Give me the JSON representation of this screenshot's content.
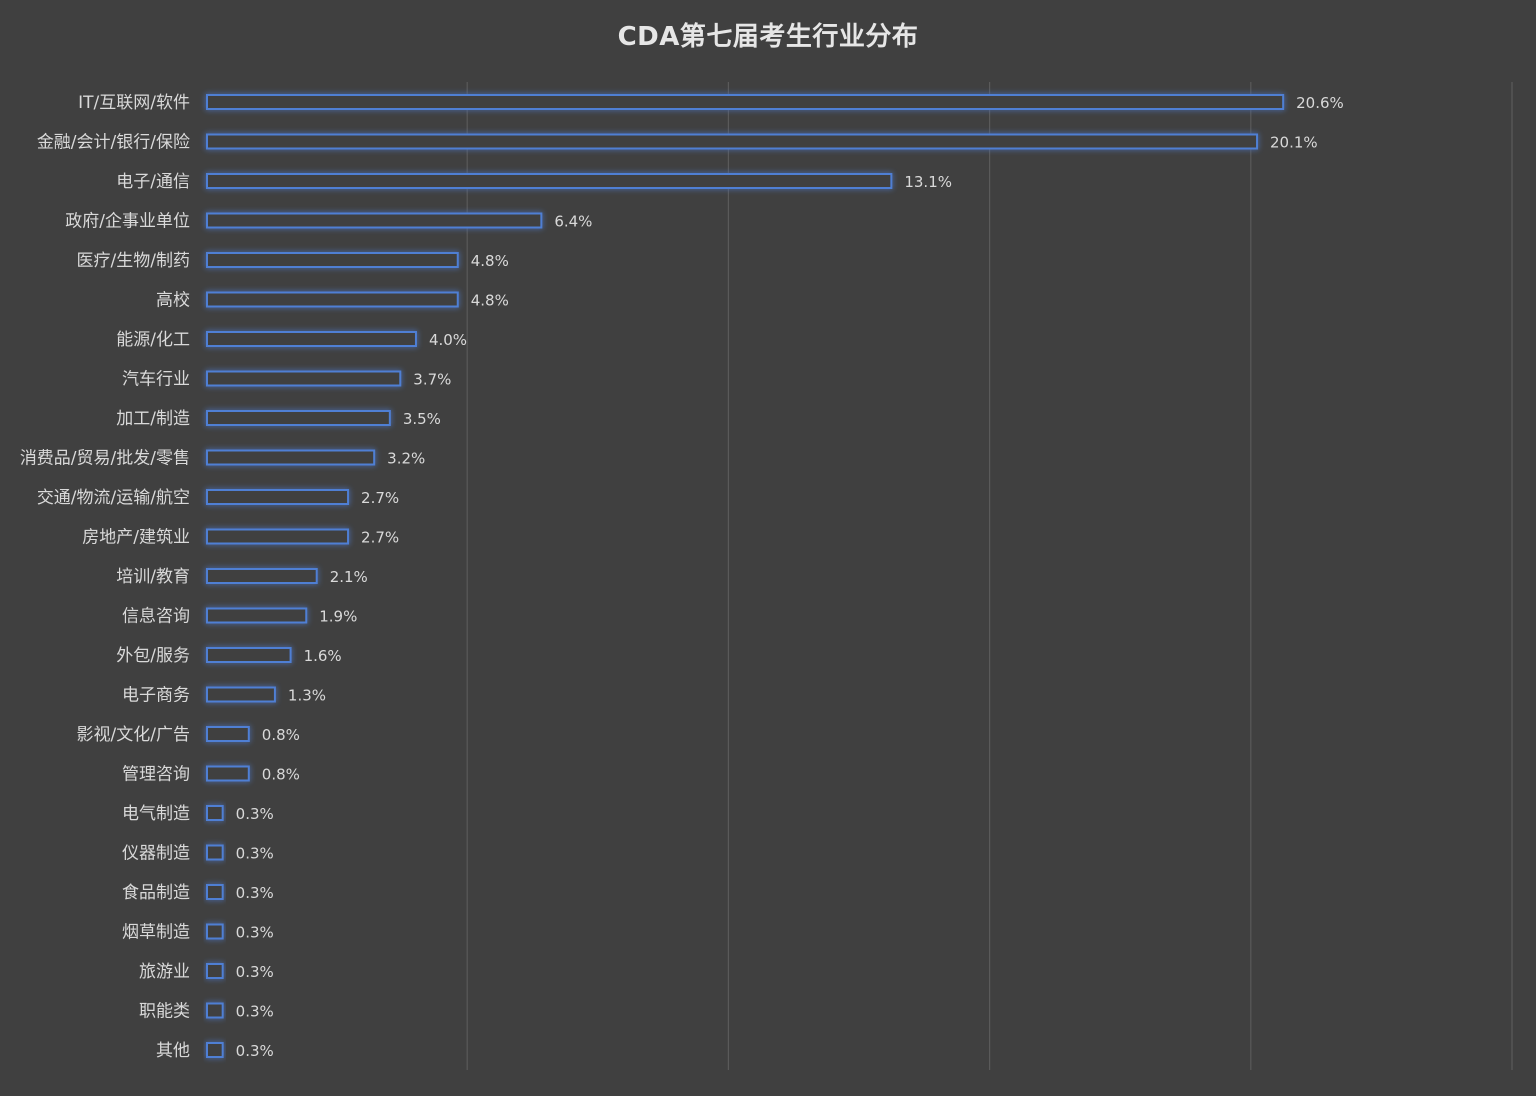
{
  "chart_data": {
    "type": "bar",
    "orientation": "horizontal",
    "title": "CDA第七届考生行业分布",
    "xlabel": "",
    "ylabel": "",
    "xlim": [
      0,
      25
    ],
    "grid": true,
    "legend": "none",
    "value_suffix": "%",
    "categories": [
      "IT/互联网/软件",
      "金融/会计/银行/保险",
      "电子/通信",
      "政府/企事业单位",
      "医疗/生物/制药",
      "高校",
      "能源/化工",
      "汽车行业",
      "加工/制造",
      "消费品/贸易/批发/零售",
      "交通/物流/运输/航空",
      "房地产/建筑业",
      "培训/教育",
      "信息咨询",
      "外包/服务",
      "电子商务",
      "影视/文化/广告",
      "管理咨询",
      "电气制造",
      "仪器制造",
      "食品制造",
      "烟草制造",
      "旅游业",
      "职能类",
      "其他"
    ],
    "values": [
      20.6,
      20.1,
      13.1,
      6.4,
      4.8,
      4.8,
      4.0,
      3.7,
      3.5,
      3.2,
      2.7,
      2.7,
      2.1,
      1.9,
      1.6,
      1.3,
      0.8,
      0.8,
      0.3,
      0.3,
      0.3,
      0.3,
      0.3,
      0.3,
      0.3
    ],
    "value_labels": [
      "20.6%",
      "20.1%",
      "13.1%",
      "6.4%",
      "4.8%",
      "4.8%",
      "4.0%",
      "3.7%",
      "3.5%",
      "3.2%",
      "2.7%",
      "2.7%",
      "2.1%",
      "1.9%",
      "1.6%",
      "1.3%",
      "0.8%",
      "0.8%",
      "0.3%",
      "0.3%",
      "0.3%",
      "0.3%",
      "0.3%",
      "0.3%",
      "0.3%"
    ],
    "colors": {
      "background": "#404040",
      "bar_outline": "#4f7fd4",
      "bar_glow": "#3b6fd0",
      "text": "#d9d9d9",
      "grid": "#5a5a5a"
    }
  }
}
